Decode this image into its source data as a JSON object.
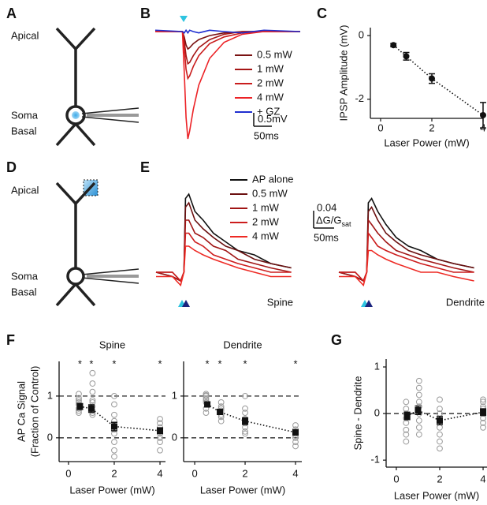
{
  "panel_labels": [
    "A",
    "B",
    "C",
    "D",
    "E",
    "F",
    "G"
  ],
  "diagrams": [
    {
      "labels": [
        "Apical",
        "Soma",
        "Basal"
      ]
    },
    {
      "labels": [
        "Apical",
        "Soma",
        "Basal"
      ]
    }
  ],
  "chart_data": [
    {
      "type": "trace",
      "x": [
        0,
        75,
        80,
        85,
        90,
        95,
        105,
        120,
        150,
        190,
        240,
        300,
        400
      ],
      "series": [
        {
          "name": "0.5 mW",
          "color": "#7a1212",
          "values": [
            0,
            0,
            -0.2,
            -0.5,
            -0.65,
            -0.6,
            -0.45,
            -0.3,
            -0.15,
            -0.05,
            0,
            0,
            0
          ]
        },
        {
          "name": "1 mW",
          "color": "#a51616",
          "values": [
            0,
            0,
            -0.35,
            -0.9,
            -1.2,
            -1.15,
            -0.9,
            -0.6,
            -0.3,
            -0.1,
            0,
            0,
            0
          ]
        },
        {
          "name": "2 mW",
          "color": "#c91d1d",
          "values": [
            0,
            0,
            -0.6,
            -1.4,
            -1.75,
            -1.65,
            -1.3,
            -0.9,
            -0.45,
            -0.2,
            -0.05,
            0,
            0
          ]
        },
        {
          "name": "4 mW",
          "color": "#ec2226",
          "values": [
            0,
            0,
            -1.5,
            -3.2,
            -4.0,
            -3.7,
            -2.9,
            -2.0,
            -1.0,
            -0.4,
            -0.1,
            0,
            0
          ]
        },
        {
          "name": "+ GZ",
          "color": "#1f2fd0",
          "values": [
            0.05,
            0,
            -0.05,
            0.05,
            -0.05,
            0.05,
            0,
            -0.05,
            0.05,
            0,
            -0.05,
            0.05,
            0
          ]
        }
      ],
      "scale_y": {
        "value": 0.5,
        "label": "0.5mV"
      },
      "scale_x": {
        "value": 50,
        "label": "50ms"
      }
    },
    {
      "type": "scatter",
      "xlabel": "Laser Power (mW)",
      "ylabel": "IPSP Amplitude (mV)",
      "xlim": [
        -0.4,
        4
      ],
      "ylim": [
        -2.6,
        0.25
      ],
      "xticks": [
        0,
        2,
        4
      ],
      "yticks": [
        0,
        -2
      ],
      "marker": "circle",
      "mean": {
        "x": [
          0.5,
          1,
          2,
          4
        ],
        "values": [
          -0.3,
          -0.65,
          -1.35,
          -2.5
        ],
        "errors": [
          0.05,
          0.12,
          0.15,
          0.4
        ]
      }
    },
    {
      "type": "trace",
      "x": [
        0,
        40,
        60,
        68,
        72,
        80,
        95,
        115,
        140,
        170,
        200,
        240,
        280,
        330
      ],
      "panels": [
        "Spine",
        "Dendrite"
      ],
      "series": [
        {
          "name": "AP alone",
          "color": "#111111",
          "values": [
            [
              0,
              -0.01,
              -0.02,
              0,
              0.17,
              0.18,
              0.14,
              0.12,
              0.09,
              0.07,
              0.05,
              0.04,
              0.02,
              0.01
            ],
            [
              0,
              -0.01,
              -0.02,
              0,
              0.16,
              0.17,
              0.14,
              0.11,
              0.08,
              0.06,
              0.05,
              0.03,
              0.02,
              0.01
            ]
          ]
        },
        {
          "name": "0.5 mW",
          "color": "#6b1010",
          "values": [
            [
              0,
              0,
              -0.02,
              0,
              0.15,
              0.16,
              0.12,
              0.1,
              0.08,
              0.06,
              0.05,
              0.03,
              0.02,
              0.01
            ],
            [
              0,
              0,
              -0.02,
              0,
              0.14,
              0.15,
              0.12,
              0.09,
              0.07,
              0.05,
              0.04,
              0.03,
              0.02,
              0.01
            ]
          ]
        },
        {
          "name": "1 mW",
          "color": "#a01515",
          "values": [
            [
              0,
              -0.01,
              -0.02,
              0,
              0.12,
              0.12,
              0.09,
              0.08,
              0.06,
              0.05,
              0.03,
              0.02,
              0.01,
              0
            ],
            [
              0,
              -0.01,
              -0.02,
              0,
              0.12,
              0.11,
              0.09,
              0.07,
              0.05,
              0.04,
              0.03,
              0.02,
              0.01,
              0
            ]
          ]
        },
        {
          "name": "2 mW",
          "color": "#cc1d1d",
          "values": [
            [
              0,
              0,
              -0.02,
              0,
              0.09,
              0.09,
              0.07,
              0.06,
              0.04,
              0.03,
              0.02,
              0.01,
              0,
              0
            ],
            [
              0,
              0,
              -0.02,
              0,
              0.09,
              0.08,
              0.06,
              0.05,
              0.04,
              0.03,
              0.02,
              0.01,
              0,
              0
            ]
          ]
        },
        {
          "name": "4 mW",
          "color": "#ee2a24",
          "values": [
            [
              -0.01,
              -0.01,
              -0.03,
              0,
              0.06,
              0.06,
              0.05,
              0.04,
              0.03,
              0.02,
              0.01,
              0,
              -0.01,
              -0.01
            ],
            [
              -0.01,
              -0.01,
              -0.03,
              0,
              0.05,
              0.05,
              0.04,
              0.03,
              0.02,
              0.01,
              0,
              0,
              -0.01,
              -0.02
            ]
          ]
        }
      ],
      "scale_y": 0.04,
      "ylabel": "ΔG/G",
      "ylabel_sub": "sat",
      "scale_x": {
        "value": 50,
        "label": "50ms"
      }
    },
    {
      "type": "scatter",
      "title": "Spine",
      "xlabel": "Laser Power (mW)",
      "ylabel": [
        "AP Ca Signal",
        "(Fraction of Control)"
      ],
      "xlim": [
        -0.41,
        4.24
      ],
      "ylim": [
        -0.57,
        1.83
      ],
      "xticks": [
        0,
        2,
        4
      ],
      "yticks": [
        0,
        1
      ],
      "reference_lines": [
        0,
        1
      ],
      "marker": "square",
      "points": {
        "x": [
          0.45,
          0.45,
          0.45,
          0.45,
          0.45,
          0.45,
          0.45,
          0.45,
          1.05,
          1.05,
          1.05,
          1.05,
          1.05,
          1.05,
          1.05,
          1.05,
          1.05,
          2,
          2,
          2,
          2,
          2,
          2,
          2,
          2,
          2,
          2,
          4,
          4,
          4,
          4,
          4,
          4,
          4,
          4
        ],
        "y": [
          1.05,
          0.95,
          0.9,
          0.85,
          0.8,
          0.7,
          0.65,
          0.6,
          1.55,
          1.3,
          1.1,
          0.9,
          0.85,
          0.75,
          0.65,
          0.6,
          0.55,
          1.0,
          0.8,
          0.55,
          0.4,
          0.3,
          0.2,
          0.1,
          -0.1,
          -0.3,
          -0.45,
          0.45,
          0.35,
          0.25,
          0.15,
          0.1,
          0.0,
          -0.1,
          -0.3
        ]
      },
      "mean": {
        "x": [
          0.5,
          1,
          2,
          4
        ],
        "values": [
          0.75,
          0.7,
          0.27,
          0.17
        ],
        "errors": [
          0.07,
          0.09,
          0.1,
          0.07
        ]
      },
      "significance": [
        {
          "x": 0.5,
          "label": "*"
        },
        {
          "x": 1,
          "label": "*"
        },
        {
          "x": 2,
          "label": "*"
        },
        {
          "x": 4,
          "label": "*"
        }
      ]
    },
    {
      "type": "scatter",
      "title": "Dendrite",
      "xlabel": "Laser Power (mW)",
      "xlim": [
        -0.44,
        4.25
      ],
      "ylim": [
        -0.57,
        1.83
      ],
      "xticks": [
        0,
        2,
        4
      ],
      "yticks": [
        0,
        1
      ],
      "reference_lines": [
        0,
        1
      ],
      "marker": "square",
      "points": {
        "x": [
          0.45,
          0.45,
          0.45,
          0.45,
          0.45,
          0.45,
          0.45,
          0.45,
          1.05,
          1.05,
          1.05,
          1.05,
          1.05,
          1.05,
          1.05,
          2,
          2,
          2,
          2,
          2,
          2,
          2,
          2,
          2,
          4,
          4,
          4,
          4,
          4,
          4,
          4,
          4
        ],
        "y": [
          1.05,
          1.02,
          1.0,
          0.95,
          0.9,
          0.85,
          0.7,
          0.6,
          0.85,
          0.75,
          0.7,
          0.65,
          0.55,
          0.5,
          0.4,
          1.0,
          0.7,
          0.6,
          0.45,
          0.4,
          0.35,
          0.25,
          0.15,
          0.1,
          0.3,
          0.2,
          0.15,
          0.1,
          0.05,
          0.0,
          -0.1,
          -0.2
        ]
      },
      "mean": {
        "x": [
          0.5,
          1,
          2,
          4
        ],
        "values": [
          0.8,
          0.62,
          0.4,
          0.13
        ],
        "errors": [
          0.06,
          0.06,
          0.08,
          0.06
        ]
      },
      "significance": [
        {
          "x": 0.5,
          "label": "*"
        },
        {
          "x": 1,
          "label": "*"
        },
        {
          "x": 2,
          "label": "*"
        },
        {
          "x": 4,
          "label": "*"
        }
      ]
    },
    {
      "type": "scatter",
      "xlabel": "Laser Power (mW)",
      "ylabel": "Spine - Dendrite",
      "xlim": [
        -0.47,
        4.18
      ],
      "ylim": [
        -1.15,
        1.17
      ],
      "xticks": [
        0,
        2,
        4
      ],
      "yticks": [
        -1,
        0,
        1
      ],
      "reference_lines": [
        0
      ],
      "marker": "square",
      "points": {
        "x": [
          0.45,
          0.45,
          0.45,
          0.45,
          0.45,
          0.45,
          0.45,
          0.45,
          1.05,
          1.05,
          1.05,
          1.05,
          1.05,
          1.05,
          1.05,
          1.05,
          1.05,
          2,
          2,
          2,
          2,
          2,
          2,
          2,
          2,
          4,
          4,
          4,
          4,
          4,
          4,
          4,
          4,
          4
        ],
        "y": [
          0.25,
          0.1,
          0.0,
          -0.1,
          -0.2,
          -0.35,
          -0.45,
          -0.6,
          0.7,
          0.55,
          0.4,
          0.25,
          0.15,
          0.0,
          -0.15,
          -0.3,
          -0.45,
          0.3,
          0.1,
          0.0,
          -0.15,
          -0.3,
          -0.45,
          -0.6,
          -0.75,
          0.3,
          0.25,
          0.15,
          0.1,
          0.05,
          0.0,
          -0.1,
          -0.2,
          -0.3
        ]
      },
      "mean": {
        "x": [
          0.5,
          1,
          2,
          4
        ],
        "values": [
          -0.05,
          0.07,
          -0.15,
          0.03
        ],
        "errors": [
          0.08,
          0.09,
          0.09,
          0.07
        ]
      }
    }
  ]
}
